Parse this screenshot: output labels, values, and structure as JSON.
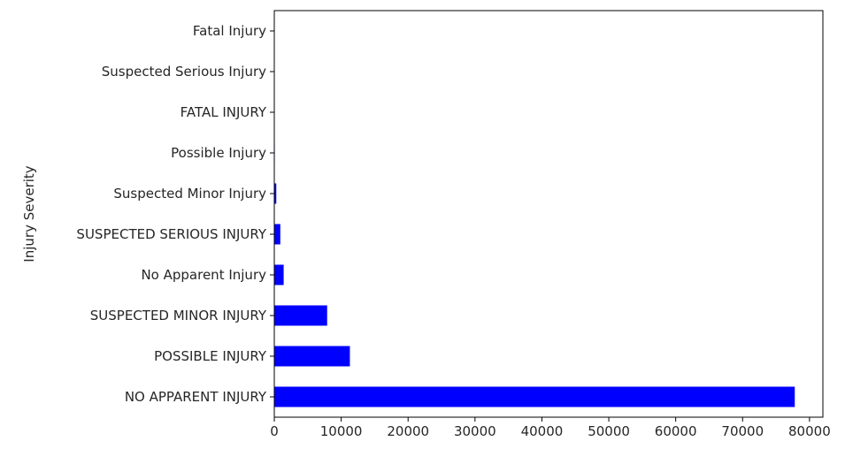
{
  "chart_data": {
    "type": "bar",
    "orientation": "horizontal",
    "title": "",
    "xlabel": "",
    "ylabel": "Injury Severity",
    "categories": [
      "NO APPARENT INJURY",
      "POSSIBLE INJURY",
      "SUSPECTED MINOR INJURY",
      "No Apparent Injury",
      "SUSPECTED SERIOUS INJURY",
      "Suspected Minor Injury",
      "Possible Injury",
      "FATAL INJURY",
      "Suspected Serious Injury",
      "Fatal Injury"
    ],
    "values": [
      77800,
      11300,
      7900,
      1400,
      900,
      300,
      70,
      40,
      30,
      10
    ],
    "xlim": [
      0,
      82000
    ],
    "xticks": [
      0,
      10000,
      20000,
      30000,
      40000,
      50000,
      60000,
      70000,
      80000
    ],
    "xtick_labels": [
      "0",
      "10000",
      "20000",
      "30000",
      "40000",
      "50000",
      "60000",
      "70000",
      "80000"
    ],
    "grid": false,
    "legend": false,
    "bar_color": "#0000ff"
  }
}
